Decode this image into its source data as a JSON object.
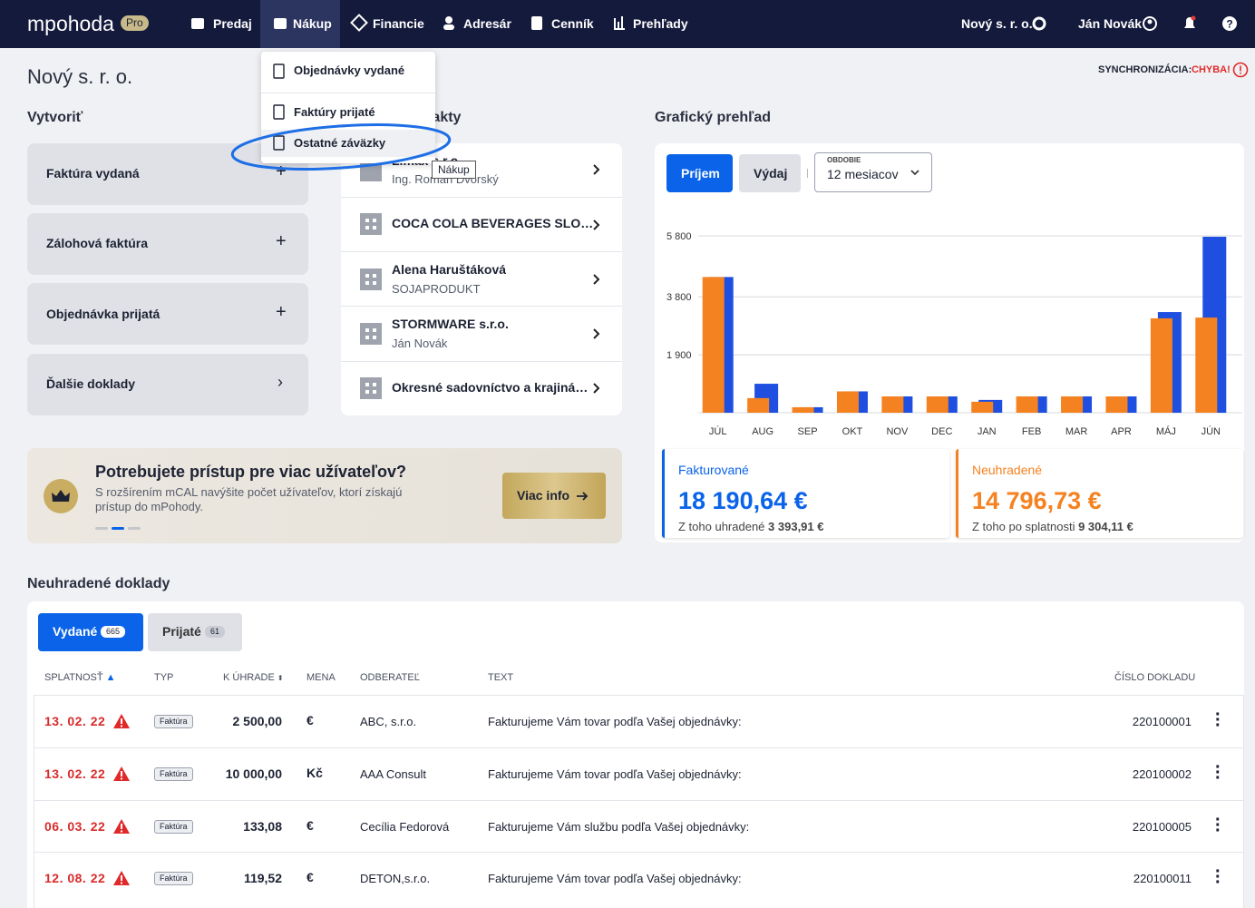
{
  "nav": {
    "logo": "mpohoda",
    "badge": "Pro",
    "items": [
      "Predaj",
      "Nákup",
      "Financie",
      "Adresár",
      "Cenník",
      "Prehľady"
    ],
    "company": "Nový s. r. o.",
    "user": "Ján Novák"
  },
  "dropdown": {
    "items": [
      "Objednávky vydané",
      "Faktúry prijaté",
      "Ostatné záväzky"
    ],
    "tooltip": "Nákup"
  },
  "header": {
    "title": "Nový s. r. o.",
    "sync_label": "SYNCHRONIZÁCIA:",
    "sync_status": "CHYBA!"
  },
  "create": {
    "title": "Vytvoriť",
    "items": [
      "Faktúra vydaná",
      "Zálohová faktúra",
      "Objednávka prijatá",
      "Ďalšie doklady"
    ]
  },
  "contacts": {
    "title": "Kontakty",
    "items": [
      {
        "name": "Limax s.r.o.",
        "sub": "Ing. Roman Dvorský"
      },
      {
        "name": "COCA COLA BEVERAGES SLO…"
      },
      {
        "name": "Alena Haruštáková",
        "sub": "SOJAPRODUKT"
      },
      {
        "name": "STORMWARE s.r.o.",
        "sub": "Ján Novák"
      },
      {
        "name": "Okresné sadovníctvo a krajiná…"
      }
    ]
  },
  "graph": {
    "title": "Grafický prehľad",
    "tabs": [
      "Príjem",
      "Výdaj"
    ],
    "period_label": "OBDOBIE",
    "period": "12 mesiacov"
  },
  "chart_data": {
    "type": "bar",
    "categories": [
      "JÚL",
      "AUG",
      "SEP",
      "OKT",
      "NOV",
      "DEC",
      "JAN",
      "FEB",
      "MAR",
      "APR",
      "MÁJ",
      "JÚN"
    ],
    "series": [
      {
        "color": "#1e4fe0",
        "values": [
          4450,
          950,
          180,
          700,
          535,
          535,
          420,
          535,
          535,
          535,
          3300,
          5770
        ]
      },
      {
        "color": "#f58220",
        "values": [
          4450,
          480,
          180,
          700,
          535,
          535,
          360,
          535,
          535,
          535,
          3095,
          3120
        ]
      }
    ],
    "ylim": [
      0,
      5800
    ],
    "yticks": [
      {
        "value": 1900,
        "label": "1 900"
      },
      {
        "value": 3800,
        "label": "3 800"
      },
      {
        "value": 5800,
        "label": "5 800"
      }
    ],
    "grid": true
  },
  "stats": [
    {
      "label": "Fakturované",
      "value": "18 190,64 €",
      "sub": "Z toho uhradené",
      "sub_value": "3 393,91 €"
    },
    {
      "label": "Neuhradené",
      "value": "14 796,73 €",
      "sub": "Z toho po splatnosti",
      "sub_value": "9 304,11 €"
    }
  ],
  "banner": {
    "title": "Potrebujete prístup pre viac užívateľov?",
    "text": "S rozšírením mCAL navýšite počet užívateľov, ktorí získajú prístup do mPohody.",
    "button": "Viac info"
  },
  "unpaid": {
    "title": "Neuhradené doklady",
    "tabs": [
      {
        "label": "Vydané",
        "count": "665"
      },
      {
        "label": "Prijaté",
        "count": "61"
      }
    ],
    "columns": [
      "SPLATNOSŤ",
      "TYP",
      "K ÚHRADE",
      "MENA",
      "ODBERATEĽ",
      "TEXT",
      "ČÍSLO DOKLADU"
    ],
    "rows": [
      [
        "13. 02. 22",
        "Faktúra",
        "2 500,00",
        "€",
        "ABC, s.r.o.",
        "Fakturujeme Vám tovar podľa Vašej objednávky:",
        "220100001"
      ],
      [
        "13. 02. 22",
        "Faktúra",
        "10 000,00",
        "Kč",
        "AAA Consult",
        "Fakturujeme Vám tovar podľa Vašej objednávky:",
        "220100002"
      ],
      [
        "06. 03. 22",
        "Faktúra",
        "133,08",
        "€",
        "Cecília Fedorová",
        "Fakturujeme Vám službu podľa Vašej objednávky:",
        "220100005"
      ],
      [
        "12. 08. 22",
        "Faktúra",
        "119,52",
        "€",
        "DETON,s.r.o.",
        "Fakturujeme Vám tovar podľa Vašej objednávky:",
        "220100011"
      ]
    ]
  }
}
